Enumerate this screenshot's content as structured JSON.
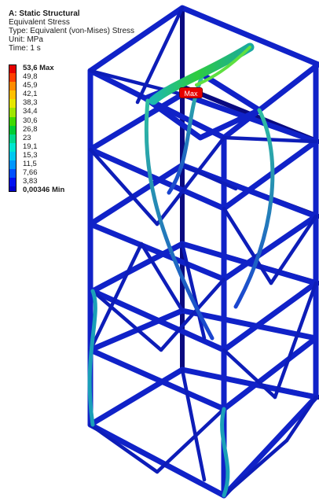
{
  "header": {
    "analysis_title": "A: Static Structural",
    "result_name": "Equivalent Stress",
    "type_line": "Type: Equivalent (von-Mises) Stress",
    "unit_line": "Unit: MPa",
    "time_line": "Time: 1 s"
  },
  "legend": {
    "entries": [
      {
        "label": "53,6 Max",
        "color": "#e60000",
        "bold": true
      },
      {
        "label": "49,8",
        "color": "#ff4000"
      },
      {
        "label": "45,9",
        "color": "#ff8c00"
      },
      {
        "label": "42,1",
        "color": "#ffbf00"
      },
      {
        "label": "38,3",
        "color": "#e6e600"
      },
      {
        "label": "34,4",
        "color": "#9fe600"
      },
      {
        "label": "30,6",
        "color": "#40d900"
      },
      {
        "label": "26,8",
        "color": "#00cc33"
      },
      {
        "label": "23",
        "color": "#00d98c"
      },
      {
        "label": "19,1",
        "color": "#00e6d0"
      },
      {
        "label": "15,3",
        "color": "#00c8f0"
      },
      {
        "label": "11,5",
        "color": "#0096ff"
      },
      {
        "label": "7,66",
        "color": "#0050ff"
      },
      {
        "label": "3,83",
        "color": "#0010f0"
      },
      {
        "label": "0,00346 Min",
        "color": "#0000cc",
        "bold": true
      }
    ]
  },
  "probe": {
    "max_label": "Max"
  },
  "colors": {
    "frame_dark": "#0a0a7a",
    "frame": "#1022c8",
    "frame_light": "#2c4be8",
    "hot": "#2ecc40"
  }
}
